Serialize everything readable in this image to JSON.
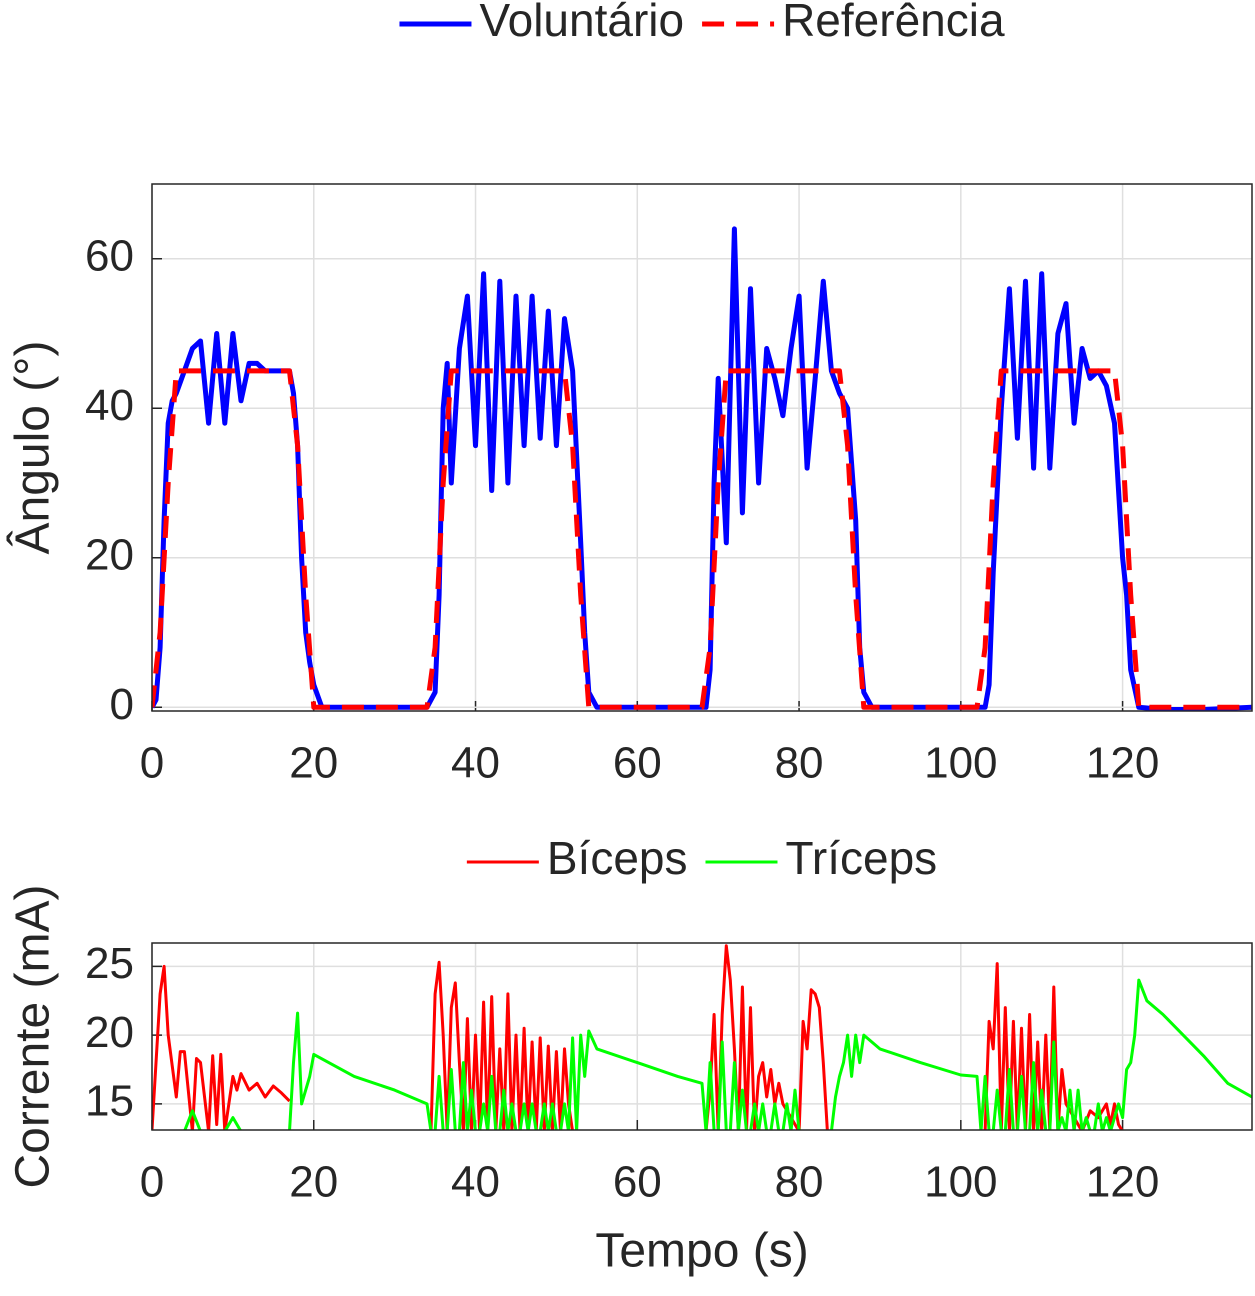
{
  "chart_data": [
    {
      "type": "line",
      "ylabel": "Ângulo (°)",
      "legend": "top",
      "grid": true,
      "xlim": [
        0,
        136
      ],
      "ylim": [
        -0.5,
        70
      ],
      "xticks": [
        0,
        20,
        40,
        60,
        80,
        100,
        120
      ],
      "yticks": [
        0,
        20,
        40,
        60
      ],
      "series": [
        {
          "name": "Voluntário",
          "color": "#0000ff",
          "dashed": false,
          "x": [
            0,
            0.5,
            1,
            1.5,
            2,
            2.5,
            3,
            4,
            5,
            6,
            7,
            8,
            9,
            10,
            11,
            12,
            13,
            14,
            15,
            16,
            17,
            17.5,
            18,
            18.5,
            19,
            19.5,
            20,
            21,
            25,
            30,
            34,
            35,
            35.5,
            36,
            36.5,
            37,
            38,
            39,
            40,
            41,
            42,
            43,
            44,
            45,
            46,
            47,
            48,
            49,
            50,
            51,
            52,
            53,
            53.5,
            54,
            55,
            60,
            65,
            68.5,
            69,
            69.5,
            70,
            71,
            72,
            73,
            74,
            75,
            76,
            77,
            78,
            79,
            80,
            81,
            82,
            83,
            84,
            85,
            86,
            87,
            87.5,
            88,
            89,
            95,
            100,
            103,
            103.5,
            104,
            105,
            106,
            107,
            108,
            109,
            110,
            111,
            112,
            113,
            114,
            115,
            116,
            117,
            118,
            119,
            120,
            120.5,
            121,
            122,
            125,
            130,
            136
          ],
          "values": [
            0,
            1,
            8,
            25,
            38,
            41,
            42,
            45,
            48,
            49,
            38,
            50,
            38,
            50,
            41,
            46,
            46,
            45,
            45,
            45,
            45,
            42,
            35,
            20,
            10,
            6,
            3,
            0,
            0,
            0,
            0,
            2,
            15,
            40,
            46,
            30,
            48,
            55,
            35,
            58,
            29,
            57,
            30,
            55,
            35,
            55,
            36,
            53,
            35,
            52,
            45,
            22,
            10,
            2,
            0,
            0,
            0,
            0,
            5,
            30,
            44,
            22,
            64,
            26,
            56,
            30,
            48,
            44,
            39,
            48,
            55,
            32,
            44,
            57,
            45,
            42,
            40,
            25,
            8,
            2,
            0,
            0,
            0,
            0,
            3,
            18,
            40,
            56,
            36,
            57,
            32,
            58,
            32,
            50,
            54,
            38,
            48,
            44,
            45,
            43,
            38,
            20,
            15,
            5,
            0,
            -0.3,
            -0.3,
            0
          ]
        },
        {
          "name": "Referência",
          "color": "#ff0000",
          "dashed": true,
          "x": [
            0,
            1,
            2,
            3,
            17,
            18,
            19,
            20,
            34,
            35,
            36,
            37,
            51,
            52,
            53,
            54,
            68,
            69,
            70,
            71,
            85,
            86,
            87,
            88,
            102,
            103,
            104,
            105,
            119,
            120,
            121,
            122,
            136
          ],
          "values": [
            0,
            10,
            30,
            45,
            45,
            35,
            15,
            0,
            0,
            8,
            30,
            45,
            45,
            35,
            15,
            0,
            0,
            8,
            30,
            45,
            45,
            35,
            15,
            0,
            0,
            8,
            30,
            45,
            45,
            35,
            15,
            0,
            0
          ]
        }
      ]
    },
    {
      "type": "line",
      "ylabel": "Corrente (mA)",
      "xlabel": "Tempo (s)",
      "legend": "top",
      "grid": true,
      "xlim": [
        0,
        136
      ],
      "ylim": [
        13.1,
        26.7
      ],
      "xticks": [
        0,
        20,
        40,
        60,
        80,
        100,
        120
      ],
      "yticks": [
        15,
        20,
        25
      ],
      "series": [
        {
          "name": "Bíceps",
          "color": "#ff0000",
          "dashed": false,
          "x": [
            0,
            1,
            1.5,
            2,
            3,
            3.5,
            4,
            5,
            5.5,
            6,
            7,
            7.5,
            8,
            8.5,
            9,
            10,
            10.5,
            11,
            12,
            13,
            14,
            15,
            16,
            17,
            17.5,
            34.5,
            35,
            35.5,
            36,
            36.5,
            37,
            37.5,
            38,
            38.5,
            39,
            39.5,
            40,
            40.5,
            41,
            41.5,
            42,
            42.5,
            43,
            43.5,
            44,
            44.5,
            45,
            45.5,
            46,
            46.5,
            47,
            47.5,
            48,
            48.5,
            49,
            49.5,
            50,
            50.5,
            51,
            51.5,
            52,
            52.5,
            68.5,
            69,
            69.5,
            70,
            70.5,
            71,
            71.5,
            72,
            72.5,
            73,
            73.5,
            74,
            74.5,
            75,
            75.5,
            76,
            76.5,
            77,
            77.5,
            78,
            79,
            80,
            80.5,
            81,
            81.5,
            82,
            82.5,
            83,
            83.5,
            84,
            84.5,
            103,
            103.5,
            104,
            104.5,
            105,
            105.5,
            106,
            106.5,
            107,
            107.5,
            108,
            108.5,
            109,
            109.5,
            110,
            110.5,
            111,
            111.5,
            112,
            112.5,
            113,
            114,
            115,
            116,
            117,
            118,
            118.5,
            119,
            119.5,
            120
          ],
          "values": [
            13.1,
            23,
            25,
            20,
            15.5,
            18.8,
            18.8,
            13,
            18.3,
            18,
            13,
            18.5,
            13.5,
            18.6,
            13,
            17,
            16,
            17.2,
            16,
            16.5,
            15.5,
            16.3,
            15.8,
            15.2,
            null,
            13,
            23,
            25.3,
            20,
            13,
            22,
            23.8,
            18,
            13,
            21.2,
            13,
            20,
            13,
            22.4,
            13,
            22.8,
            13,
            19,
            13,
            23,
            13,
            20,
            13,
            20.5,
            13,
            19.5,
            13,
            19.8,
            13,
            19.2,
            13,
            18.8,
            13,
            19,
            15,
            13,
            null,
            13,
            16,
            21.5,
            13,
            21.5,
            26.5,
            24,
            19,
            13,
            23.5,
            13,
            22,
            13,
            17,
            18,
            15.5,
            17.5,
            15,
            16.5,
            15,
            14,
            13,
            21,
            19,
            23.3,
            23,
            22,
            18,
            13,
            13,
            null,
            13,
            21,
            19,
            25.2,
            13,
            22,
            13,
            21,
            13,
            20.5,
            13,
            21.5,
            13,
            19.5,
            13,
            20,
            13,
            23.5,
            13,
            17.5,
            15,
            14,
            13,
            14.5,
            14,
            15,
            13.5,
            15,
            13.5,
            13
          ]
        },
        {
          "name": "Tríceps",
          "color": "#00ff00",
          "dashed": false,
          "x": [
            4,
            5,
            6,
            7,
            8,
            9,
            10,
            11,
            12,
            12.5,
            17,
            17.5,
            18,
            18.5,
            19,
            19.5,
            20,
            25,
            30,
            34,
            34.5,
            35,
            35.5,
            36,
            36.5,
            37,
            37.5,
            38,
            38.5,
            39,
            39.5,
            40,
            40.5,
            41,
            41.5,
            42,
            42.5,
            43,
            43.5,
            44,
            44.5,
            45,
            45.5,
            46,
            46.5,
            47,
            47.5,
            48,
            48.5,
            49,
            49.5,
            50,
            50.5,
            51,
            51.5,
            52,
            52.5,
            53,
            53.5,
            54,
            55,
            60,
            65,
            68,
            68.5,
            69,
            69.5,
            70,
            70.5,
            71,
            71.5,
            72,
            72.5,
            73,
            73.5,
            74,
            74.5,
            75,
            75.5,
            76,
            76.5,
            77,
            77.5,
            78,
            78.5,
            79,
            79.5,
            80,
            80.5,
            81,
            81.5,
            82,
            82.5,
            83,
            83.5,
            84,
            84.5,
            85,
            85.5,
            86,
            86.5,
            87,
            87.5,
            88,
            90,
            95,
            100,
            102,
            102.5,
            103,
            103.5,
            104,
            104.5,
            105,
            105.5,
            106,
            106.5,
            107,
            107.5,
            108,
            108.5,
            109,
            109.5,
            110,
            110.5,
            111,
            111.5,
            112,
            112.5,
            113,
            113.5,
            114,
            114.5,
            115,
            115.5,
            116,
            116.5,
            117,
            117.5,
            118,
            118.5,
            119,
            119.5,
            120,
            120.5,
            121,
            121.5,
            122,
            123,
            125,
            130,
            133,
            136
          ],
          "values": [
            13,
            14.5,
            13,
            13,
            13,
            13,
            14,
            13,
            13,
            null,
            13,
            18,
            21.6,
            15,
            16,
            17,
            18.6,
            17,
            16,
            15,
            13,
            13,
            17,
            13,
            13,
            17.5,
            13,
            13,
            18,
            13,
            16,
            13,
            13,
            15,
            13,
            17,
            13,
            13,
            16,
            13,
            15,
            13,
            13,
            15,
            13,
            15,
            13,
            13,
            15,
            13,
            15,
            13,
            13,
            15,
            13,
            19.8,
            13,
            20,
            17,
            20.3,
            19,
            18,
            17,
            16.5,
            13,
            18,
            13,
            13,
            19.5,
            13,
            13,
            18,
            13,
            16,
            13,
            13,
            15,
            13,
            15,
            13,
            13,
            15,
            13,
            13,
            15,
            13,
            16,
            13,
            13,
            13,
            13,
            13,
            13,
            13,
            13,
            13,
            15.5,
            17,
            18,
            20,
            17,
            20,
            18,
            20,
            19,
            18,
            17.1,
            17,
            13,
            17,
            13,
            13,
            16,
            13,
            13,
            17.5,
            13,
            13,
            17,
            13,
            13,
            18,
            13,
            16,
            13,
            13,
            19.5,
            13,
            14,
            13,
            16,
            13,
            16,
            13,
            14,
            13,
            13,
            15,
            13,
            14,
            13,
            14,
            15,
            14,
            17.5,
            18,
            20,
            24,
            22.5,
            21.5,
            18.5,
            16.5,
            15.5
          ]
        }
      ]
    }
  ]
}
